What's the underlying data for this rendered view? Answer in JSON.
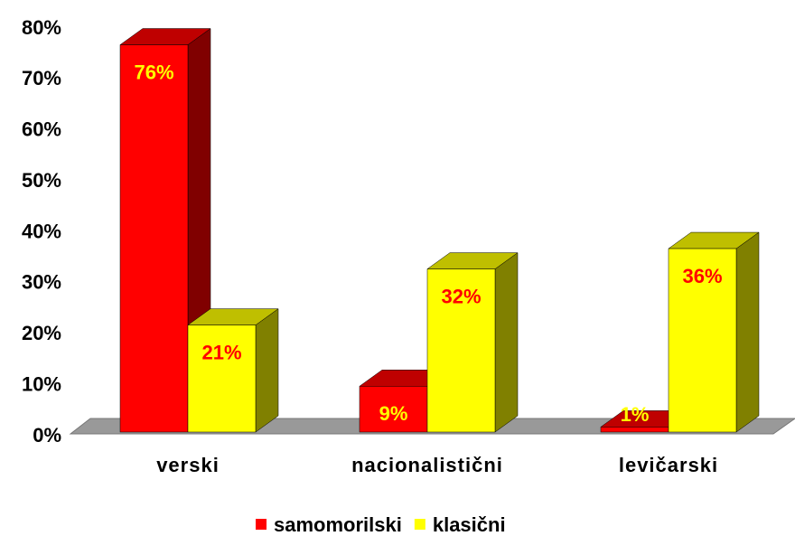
{
  "chart_data": {
    "type": "bar3d",
    "categories": [
      "verski",
      "nacionalistični",
      "levičarski"
    ],
    "series": [
      {
        "name": "samomorilski",
        "color": "#ff0000",
        "values": [
          76,
          9,
          1
        ],
        "value_labels": [
          "76%",
          "9%",
          "1%"
        ]
      },
      {
        "name": "klasični",
        "color": "#ffff00",
        "values": [
          21,
          32,
          36
        ],
        "value_labels": [
          "21%",
          "32%",
          "36%"
        ]
      }
    ],
    "ylim": [
      0,
      80
    ],
    "yticks": [
      {
        "value": 0,
        "label": "0%"
      },
      {
        "value": 10,
        "label": "10%"
      },
      {
        "value": 20,
        "label": "20%"
      },
      {
        "value": 30,
        "label": "30%"
      },
      {
        "value": 40,
        "label": "40%"
      },
      {
        "value": 50,
        "label": "50%"
      },
      {
        "value": 60,
        "label": "60%"
      },
      {
        "value": 70,
        "label": "70%"
      },
      {
        "value": 80,
        "label": "80%"
      }
    ],
    "legend": "bottom"
  }
}
